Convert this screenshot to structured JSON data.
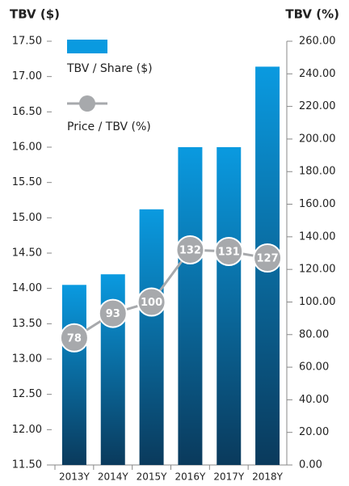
{
  "chart_data": {
    "type": "bar_line",
    "y_label": "TBV ($)",
    "y2_label": "TBV (%)",
    "categories": [
      "2013Y",
      "2014Y",
      "2015Y",
      "2016Y",
      "2017Y",
      "2018Y"
    ],
    "series": [
      {
        "name": "TBV / Share ($)",
        "type": "bar",
        "color": "#0a9ae0",
        "axis": "y",
        "values": [
          14.05,
          14.2,
          15.12,
          16.0,
          16.0,
          17.14
        ]
      },
      {
        "name": "Price / TBV (%)",
        "type": "line",
        "color": "#a7a9ac",
        "axis": "y2",
        "values": [
          78,
          93,
          100,
          132,
          131,
          127
        ]
      }
    ],
    "ylim": [
      11.5,
      17.5
    ],
    "yticks": [
      {
        "value": 11.5,
        "label": "11.50"
      },
      {
        "value": 12,
        "label": "12.00"
      },
      {
        "value": 12.5,
        "label": "12.50"
      },
      {
        "value": 13,
        "label": "13.00"
      },
      {
        "value": 13.5,
        "label": "13.50"
      },
      {
        "value": 14,
        "label": "14.00"
      },
      {
        "value": 14.5,
        "label": "14.50"
      },
      {
        "value": 15,
        "label": "15.00"
      },
      {
        "value": 15.5,
        "label": "15.50"
      },
      {
        "value": 16,
        "label": "16.00"
      },
      {
        "value": 16.5,
        "label": "16.50"
      },
      {
        "value": 17,
        "label": "17.00"
      },
      {
        "value": 17.5,
        "label": "17.50"
      }
    ],
    "y2lim": [
      0,
      260
    ],
    "y2ticks": [
      {
        "value": 0,
        "label": "0.00"
      },
      {
        "value": 20,
        "label": "20.00"
      },
      {
        "value": 40,
        "label": "40.00"
      },
      {
        "value": 60,
        "label": "60.00"
      },
      {
        "value": 80,
        "label": "80.00"
      },
      {
        "value": 100,
        "label": "100.00"
      },
      {
        "value": 120,
        "label": "120.00"
      },
      {
        "value": 140,
        "label": "140.00"
      },
      {
        "value": 160,
        "label": "160.00"
      },
      {
        "value": 180,
        "label": "180.00"
      },
      {
        "value": 200,
        "label": "200.00"
      },
      {
        "value": 220,
        "label": "220.00"
      },
      {
        "value": 240,
        "label": "240.00"
      },
      {
        "value": 260,
        "label": "260.00"
      }
    ],
    "legend": "top-left"
  }
}
